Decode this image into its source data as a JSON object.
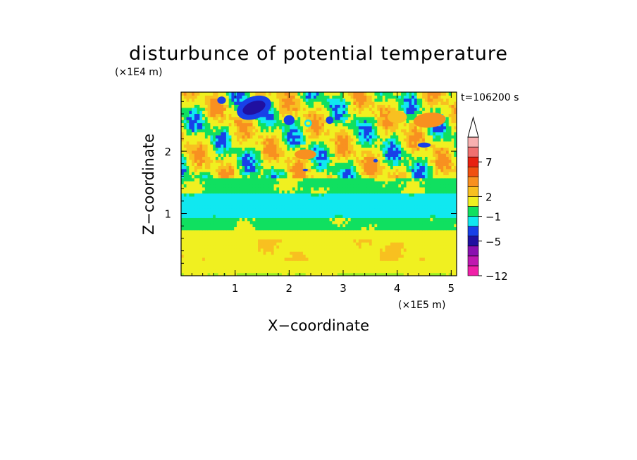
{
  "chart_data": {
    "type": "heatmap",
    "title": "disturbunce of potential temperature",
    "time_label": "t=106200 s",
    "xlabel": "X−coordinate",
    "ylabel": "Z−coordinate",
    "x_unit": "(×1E5 m)",
    "y_unit": "(×1E4 m)",
    "xlim": [
      0,
      5.1
    ],
    "ylim": [
      0,
      2.95
    ],
    "x_ticks": [
      "1",
      "2",
      "3",
      "4",
      "5"
    ],
    "x_tick_values": [
      1,
      2,
      3,
      4,
      5
    ],
    "y_ticks": [
      "1",
      "2"
    ],
    "y_tick_values": [
      1,
      2
    ],
    "colorbar": {
      "labels": [
        "7",
        "2",
        "−1",
        "−5",
        "−12"
      ],
      "label_levels": [
        7,
        2,
        -1,
        -5,
        -12
      ],
      "colors": [
        "#f020a8",
        "#c018b0",
        "#8a10b0",
        "#2010a0",
        "#1840e8",
        "#10e8f0",
        "#10e060",
        "#f0f020",
        "#f8c020",
        "#f89020",
        "#f05010",
        "#e82010",
        "#f07070",
        "#f8b0b0"
      ],
      "extend": "max"
    },
    "bands": [
      {
        "z_range": [
          0.0,
          0.05
        ],
        "level": "lime"
      },
      {
        "z_range": [
          0.05,
          0.75
        ],
        "level": "yellow"
      },
      {
        "z_range": [
          0.75,
          0.95
        ],
        "level": "green"
      },
      {
        "z_range": [
          0.95,
          1.35
        ],
        "level": "cyan"
      },
      {
        "z_range": [
          1.35,
          1.55
        ],
        "level": "green"
      },
      {
        "z_range": [
          1.55,
          2.95
        ],
        "level": "mixed"
      }
    ]
  }
}
